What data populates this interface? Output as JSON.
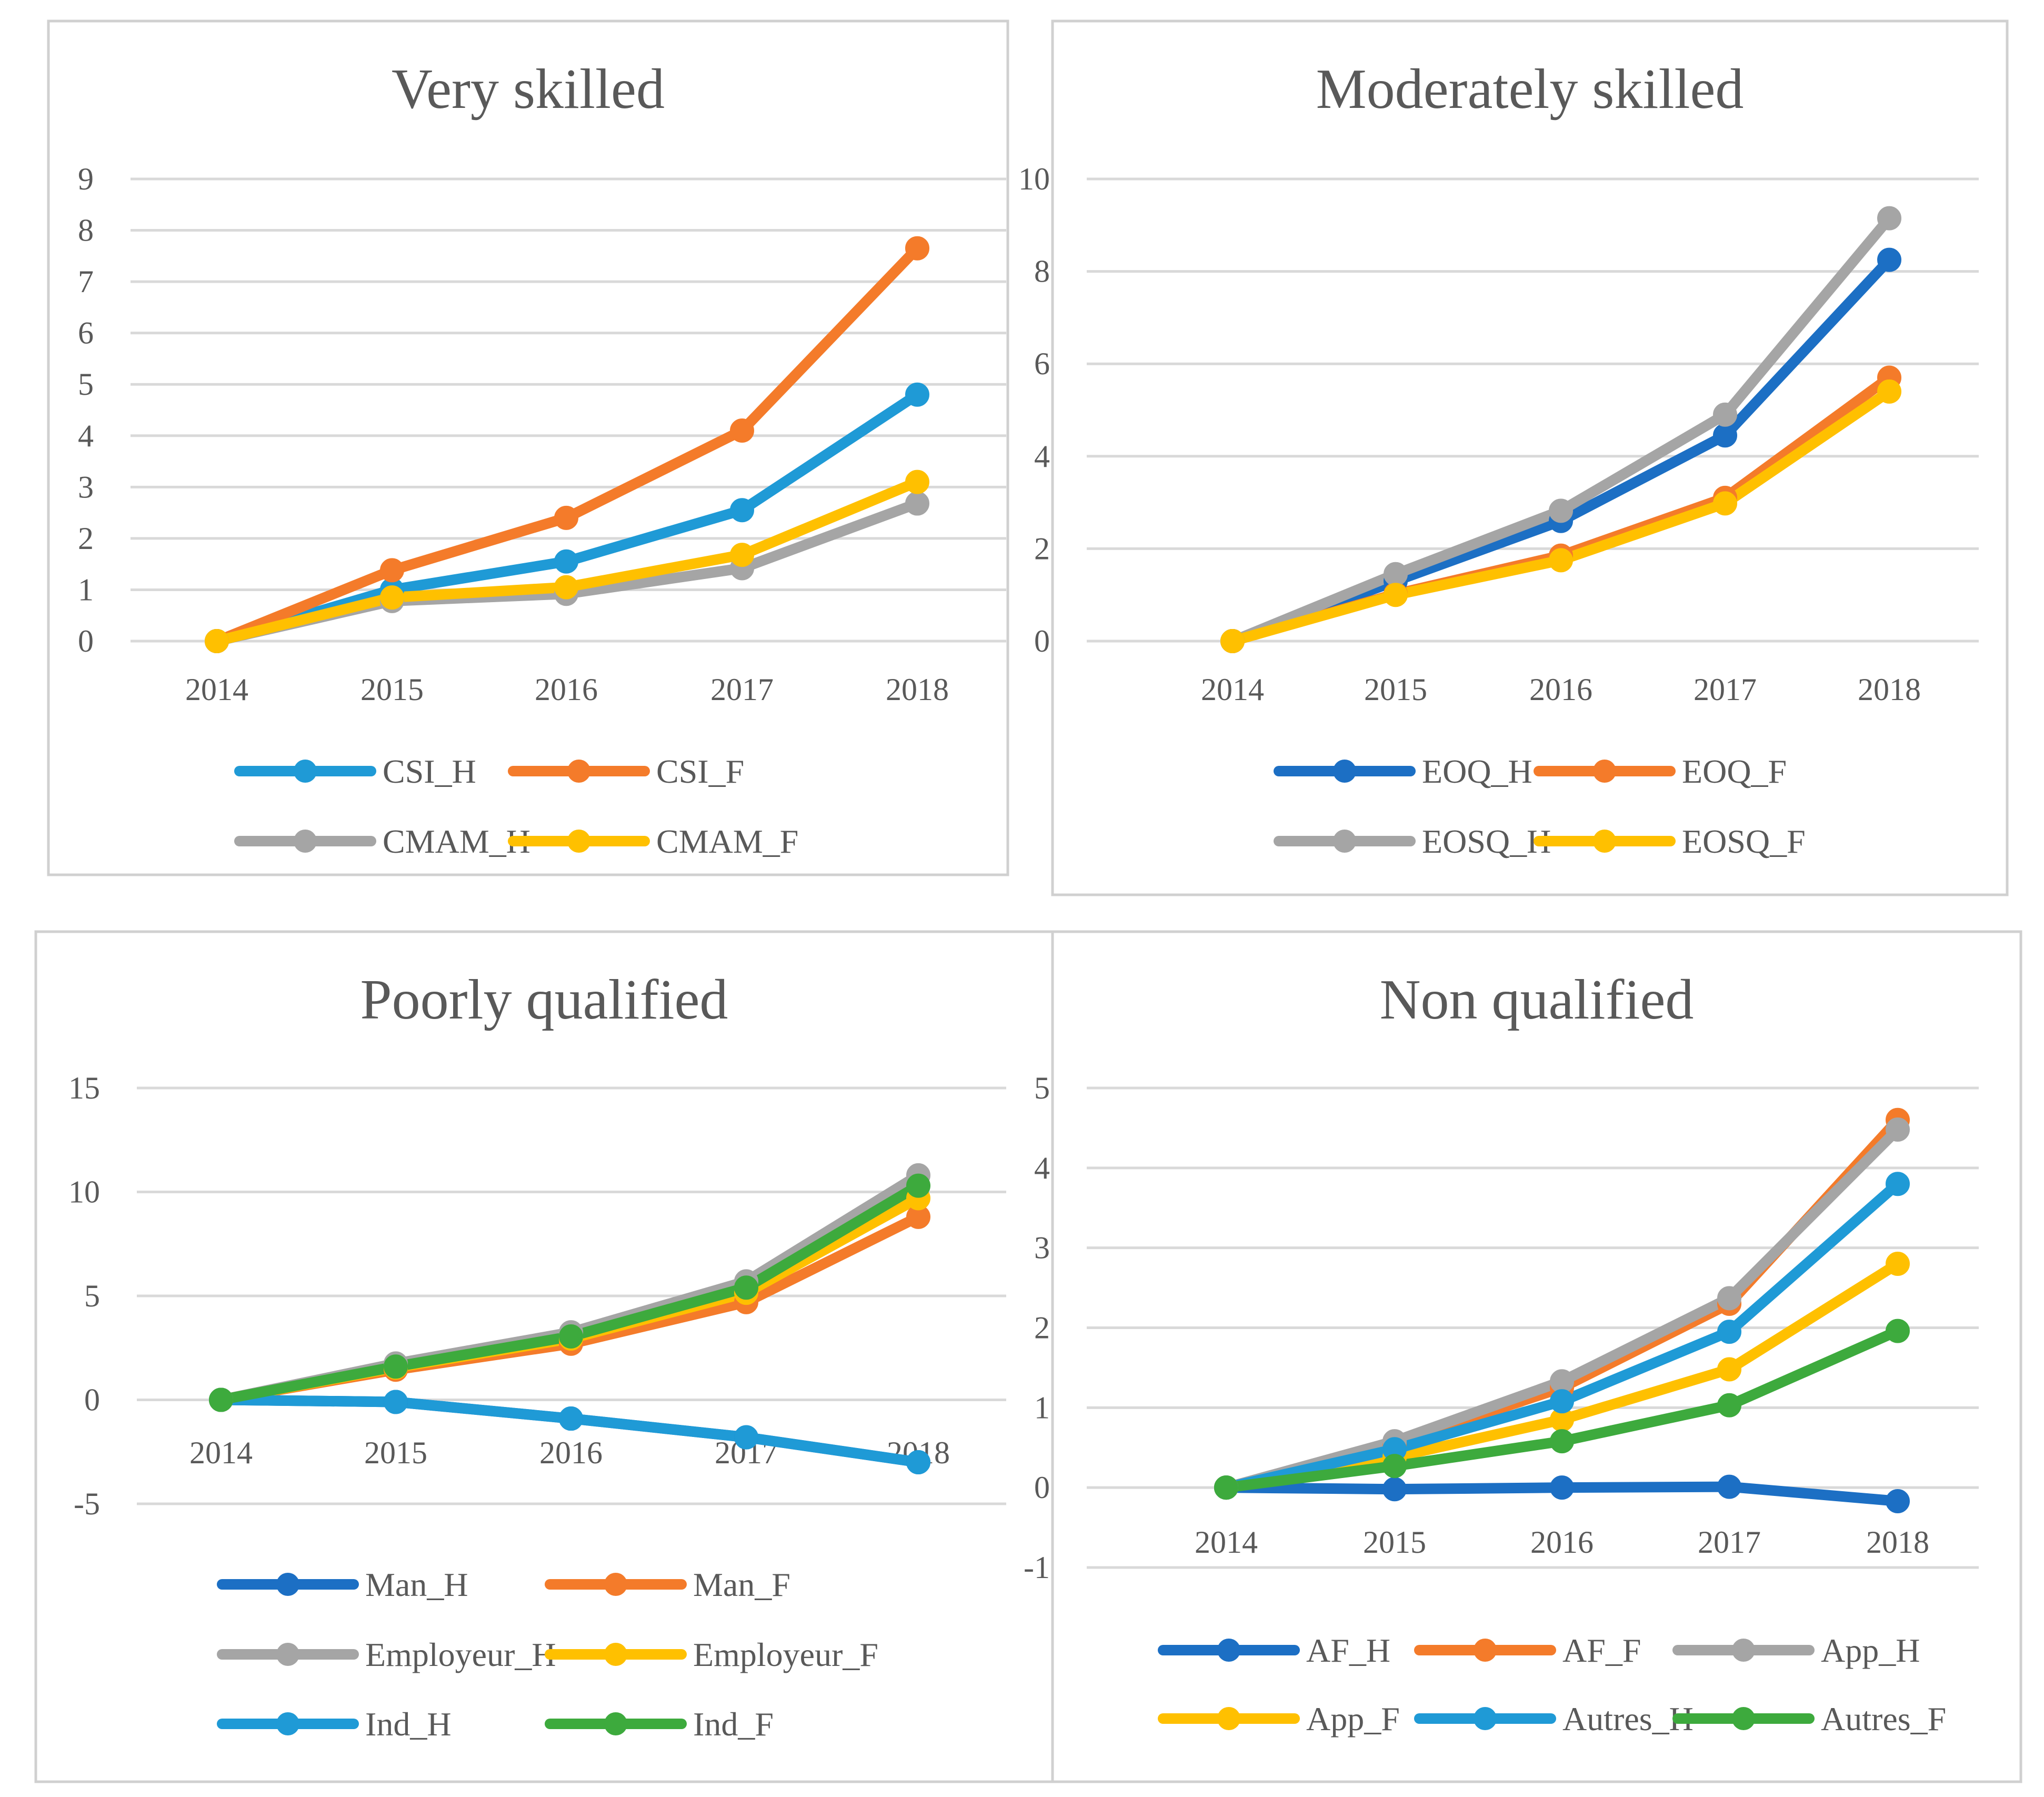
{
  "chart_data": [
    {
      "type": "line",
      "title": "Very skilled",
      "categories": [
        "2014",
        "2015",
        "2016",
        "2017",
        "2018"
      ],
      "ylim": [
        0,
        9
      ],
      "yticks": [
        0,
        1,
        2,
        3,
        4,
        5,
        6,
        7,
        8,
        9
      ],
      "yticklabels": [
        "0",
        "1",
        "2",
        "3",
        "4",
        "5",
        "6",
        "7",
        "8",
        "9"
      ],
      "grid": true,
      "legend": "bottom",
      "series": [
        {
          "name": "CSI_H",
          "color": "#1f9ad6",
          "values": [
            0,
            1.0,
            1.55,
            2.55,
            4.8
          ]
        },
        {
          "name": "CSI_F",
          "color": "#f47b2a",
          "values": [
            0,
            1.38,
            2.4,
            4.1,
            7.65
          ]
        },
        {
          "name": "CMAM_H",
          "color": "#a5a5a5",
          "values": [
            0,
            0.78,
            0.92,
            1.42,
            2.68
          ]
        },
        {
          "name": "CMAM_F",
          "color": "#ffc000",
          "values": [
            0,
            0.85,
            1.05,
            1.68,
            3.1
          ]
        }
      ]
    },
    {
      "type": "line",
      "title": "Moderately skilled",
      "categories": [
        "2014",
        "2015",
        "2016",
        "2017",
        "2018"
      ],
      "ylim": [
        0,
        10
      ],
      "yticks": [
        0,
        2,
        4,
        6,
        8,
        10
      ],
      "yticklabels": [
        "0",
        "2",
        "4",
        "6",
        "8",
        "10"
      ],
      "grid": true,
      "legend": "bottom",
      "series": [
        {
          "name": "EOQ_H",
          "color": "#1c6fc4",
          "values": [
            0,
            1.3,
            2.6,
            4.45,
            8.25
          ]
        },
        {
          "name": "EOQ_F",
          "color": "#f47b2a",
          "values": [
            0,
            1.02,
            1.85,
            3.1,
            5.7
          ]
        },
        {
          "name": "EOSQ_H",
          "color": "#a5a5a5",
          "values": [
            0,
            1.45,
            2.82,
            4.9,
            9.15
          ]
        },
        {
          "name": "EOSQ_F",
          "color": "#ffc000",
          "values": [
            0,
            1.0,
            1.75,
            2.98,
            5.4
          ]
        }
      ]
    },
    {
      "type": "line",
      "title": "Poorly qualified",
      "categories": [
        "2014",
        "2015",
        "2016",
        "2017",
        "2018"
      ],
      "ylim": [
        -5,
        15
      ],
      "yticks": [
        -5,
        0,
        5,
        10,
        15
      ],
      "yticklabels": [
        "-5",
        "0",
        "5",
        "10",
        "15"
      ],
      "grid": true,
      "legend": "bottom",
      "series": [
        {
          "name": "Man_H",
          "color": "#1c6fc4",
          "values": [
            0,
            -0.1,
            -0.9,
            -1.8,
            -3.0
          ]
        },
        {
          "name": "Man_F",
          "color": "#f47b2a",
          "values": [
            0,
            1.45,
            2.7,
            4.7,
            8.8
          ]
        },
        {
          "name": "Employeur_H",
          "color": "#a5a5a5",
          "values": [
            0,
            1.75,
            3.25,
            5.7,
            10.8
          ]
        },
        {
          "name": "Employeur_F",
          "color": "#ffc000",
          "values": [
            0,
            1.55,
            2.95,
            5.15,
            9.7
          ]
        },
        {
          "name": "Ind_H",
          "color": "#1f9ad6",
          "values": [
            0,
            -0.1,
            -0.9,
            -1.8,
            -3.0
          ]
        },
        {
          "name": "Ind_F",
          "color": "#3daa3d",
          "values": [
            0,
            1.6,
            3.05,
            5.4,
            10.3
          ]
        }
      ]
    },
    {
      "type": "line",
      "title": "Non qualified",
      "categories": [
        "2014",
        "2015",
        "2016",
        "2017",
        "2018"
      ],
      "ylim": [
        -1,
        5
      ],
      "yticks": [
        -1,
        0,
        1,
        2,
        3,
        4,
        5
      ],
      "yticklabels": [
        "-1",
        "0",
        "1",
        "2",
        "3",
        "4",
        "5"
      ],
      "grid": true,
      "legend": "bottom",
      "series": [
        {
          "name": "AF_H",
          "color": "#1c6fc4",
          "values": [
            0,
            -0.02,
            0.0,
            0.01,
            -0.17
          ]
        },
        {
          "name": "AF_F",
          "color": "#f47b2a",
          "values": [
            0,
            0.55,
            1.25,
            2.3,
            4.6
          ]
        },
        {
          "name": "App_H",
          "color": "#a5a5a5",
          "values": [
            0,
            0.58,
            1.33,
            2.37,
            4.48
          ]
        },
        {
          "name": "App_F",
          "color": "#ffc000",
          "values": [
            0,
            0.38,
            0.85,
            1.48,
            2.8
          ]
        },
        {
          "name": "Autres_H",
          "color": "#1f9ad6",
          "values": [
            0,
            0.48,
            1.08,
            1.95,
            3.8
          ]
        },
        {
          "name": "Autres_F",
          "color": "#3daa3d",
          "values": [
            0,
            0.27,
            0.58,
            1.03,
            1.96
          ]
        }
      ]
    }
  ]
}
